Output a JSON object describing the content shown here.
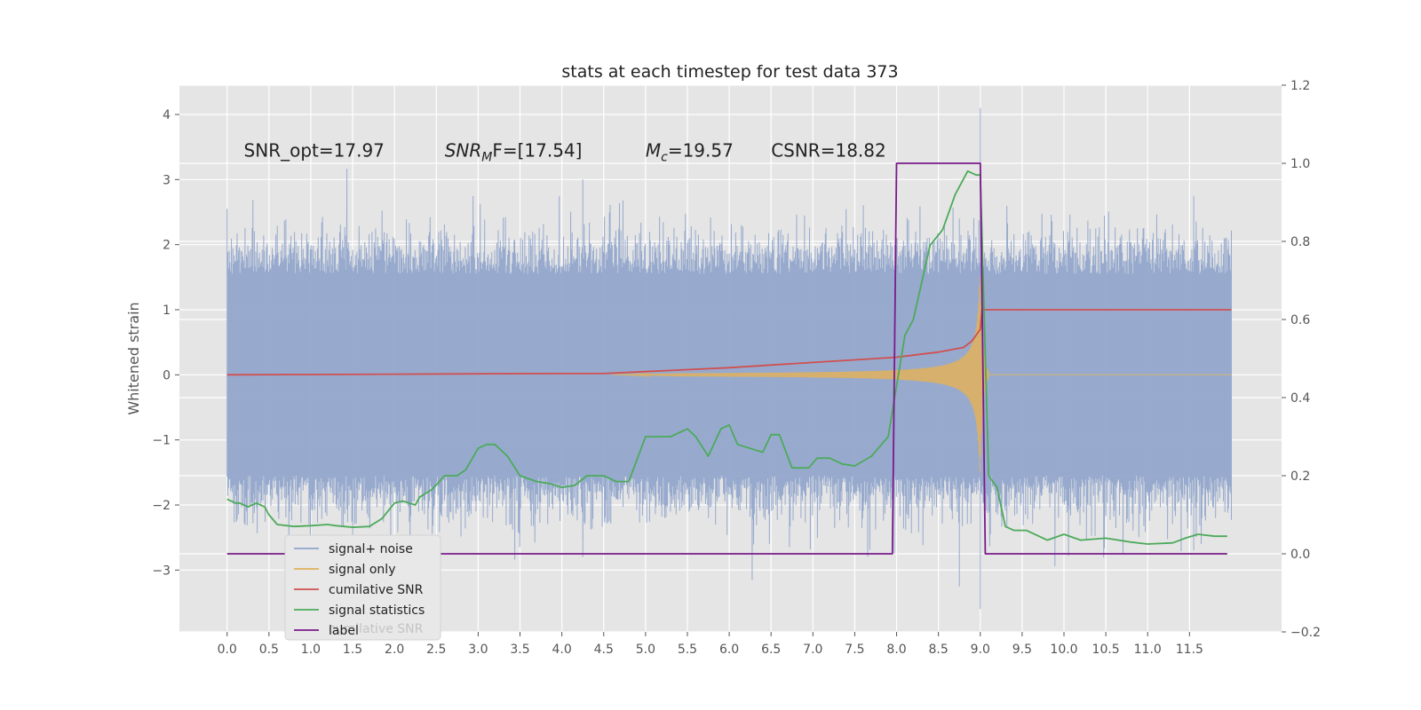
{
  "chart_data": {
    "type": "line",
    "title": "stats at each timestep for test data 373",
    "ylabel": "Whitened strain",
    "xlabel": "",
    "xlim": [
      -0.57,
      12.6
    ],
    "ylim": [
      -3.95,
      4.45
    ],
    "y2lim": [
      -0.2,
      1.2
    ],
    "grid": true,
    "legend_position": "lower-left",
    "x_ticks": [
      "0.0",
      "0.5",
      "1.0",
      "1.5",
      "2.0",
      "2.5",
      "3.0",
      "3.5",
      "4.0",
      "4.5",
      "5.0",
      "5.5",
      "6.0",
      "6.5",
      "7.0",
      "7.5",
      "8.0",
      "8.5",
      "9.0",
      "9.5",
      "10.0",
      "10.5",
      "11.0",
      "11.5"
    ],
    "y_ticks": [
      "4",
      "3",
      "2",
      "1",
      "0",
      "−1",
      "−2",
      "−3"
    ],
    "y2_ticks": [
      "1.2",
      "1.0",
      "0.8",
      "0.6",
      "0.4",
      "0.2",
      "0.0",
      "−0.2"
    ],
    "annotations": [
      {
        "text": "SNR_opt=17.97",
        "x": 0.2,
        "y": 3.35
      },
      {
        "text": "SNR",
        "sub": "M",
        "after": "F=[17.54]",
        "x": 2.6,
        "y": 3.35
      },
      {
        "text": "M",
        "sub": "c",
        "after": "=19.57",
        "x": 5.0,
        "y": 3.35
      },
      {
        "text": "CSNR=18.82",
        "x": 6.5,
        "y": 3.35
      }
    ],
    "series": [
      {
        "name": "signal+ noise",
        "color": "#92a6cc",
        "axis": "left",
        "description": "whitened strain noise band",
        "amplitude_envelope": {
          "x": [
            0,
            12
          ],
          "typical_range": [
            -1.6,
            1.6
          ],
          "spike_max": 4.1,
          "spike_min": -3.6
        }
      },
      {
        "name": "signal only",
        "color": "#e0b25a",
        "axis": "left",
        "chirp": {
          "start": 4.6,
          "merger": 9.0,
          "peak_amplitude": 1.5,
          "end": 9.1
        }
      },
      {
        "name": "cumilative SNR",
        "color": "#d05050",
        "axis": "left",
        "x": [
          0,
          1,
          2,
          3,
          4,
          4.5,
          5,
          5.5,
          6,
          6.5,
          7,
          7.5,
          8,
          8.5,
          8.8,
          8.9,
          9.0,
          9.02,
          10,
          11,
          12
        ],
        "y": [
          0,
          0.005,
          0.01,
          0.015,
          0.02,
          0.02,
          0.05,
          0.08,
          0.11,
          0.15,
          0.19,
          0.23,
          0.27,
          0.35,
          0.42,
          0.52,
          0.7,
          1.0,
          1.0,
          1.0,
          1.0
        ]
      },
      {
        "name": "signal statistics",
        "color": "#4caa5a",
        "axis": "right",
        "x": [
          0,
          0.1,
          0.15,
          0.25,
          0.35,
          0.45,
          0.5,
          0.6,
          0.8,
          1.0,
          1.2,
          1.3,
          1.5,
          1.7,
          1.85,
          2.0,
          2.1,
          2.25,
          2.3,
          2.45,
          2.6,
          2.75,
          2.85,
          3.0,
          3.1,
          3.2,
          3.35,
          3.5,
          3.7,
          3.85,
          4.0,
          4.15,
          4.3,
          4.45,
          4.5,
          4.65,
          4.8,
          5.0,
          5.3,
          5.5,
          5.6,
          5.75,
          5.9,
          6.0,
          6.1,
          6.25,
          6.4,
          6.5,
          6.6,
          6.75,
          6.95,
          7.05,
          7.2,
          7.35,
          7.5,
          7.7,
          7.9,
          8.0,
          8.1,
          8.2,
          8.4,
          8.55,
          8.7,
          8.85,
          8.95,
          9.0,
          9.1,
          9.2,
          9.3,
          9.4,
          9.55,
          9.8,
          10.0,
          10.2,
          10.5,
          10.8,
          11.0,
          11.3,
          11.45,
          11.6,
          11.8,
          11.95
        ],
        "y": [
          0.14,
          0.13,
          0.13,
          0.12,
          0.13,
          0.12,
          0.1,
          0.075,
          0.07,
          0.072,
          0.075,
          0.072,
          0.068,
          0.07,
          0.09,
          0.13,
          0.135,
          0.125,
          0.145,
          0.165,
          0.2,
          0.2,
          0.215,
          0.27,
          0.28,
          0.28,
          0.25,
          0.2,
          0.185,
          0.18,
          0.17,
          0.175,
          0.2,
          0.2,
          0.2,
          0.185,
          0.185,
          0.3,
          0.3,
          0.32,
          0.3,
          0.25,
          0.32,
          0.33,
          0.28,
          0.27,
          0.26,
          0.305,
          0.305,
          0.22,
          0.22,
          0.245,
          0.245,
          0.23,
          0.225,
          0.25,
          0.3,
          0.43,
          0.56,
          0.6,
          0.79,
          0.83,
          0.92,
          0.98,
          0.97,
          0.97,
          0.2,
          0.17,
          0.07,
          0.06,
          0.06,
          0.035,
          0.05,
          0.035,
          0.04,
          0.03,
          0.025,
          0.028,
          0.04,
          0.05,
          0.045,
          0.045
        ]
      },
      {
        "name": "label",
        "color": "#7a1a8a",
        "axis": "right",
        "x": [
          0,
          7.95,
          8.0,
          9.0,
          9.06,
          11.95
        ],
        "y": [
          0,
          0,
          1,
          1,
          0,
          0
        ]
      }
    ]
  },
  "legend": {
    "items": [
      "signal+ noise",
      "signal only",
      "cumilative SNR",
      "signal statistics",
      "label"
    ],
    "ghost_text": "cumilative SNR"
  }
}
